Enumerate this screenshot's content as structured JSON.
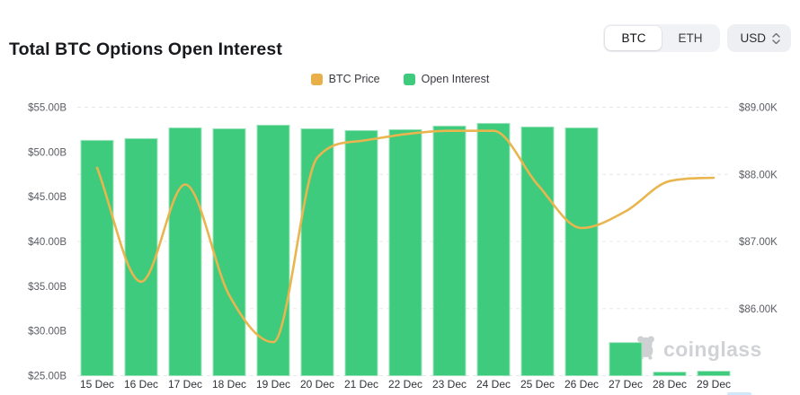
{
  "header": {
    "title": "Total BTC Options Open Interest",
    "coin_toggle": {
      "options": [
        "BTC",
        "ETH"
      ],
      "selected": "BTC"
    },
    "currency": {
      "value": "USD"
    }
  },
  "legend": {
    "items": [
      {
        "label": "BTC Price",
        "color": "#e9b04a"
      },
      {
        "label": "Open Interest",
        "color": "#3ecb7d"
      }
    ]
  },
  "watermark": {
    "text": "coinglass"
  },
  "chart_data": {
    "type": "bar+line",
    "title": "Total BTC Options Open Interest",
    "categories": [
      "15 Dec",
      "16 Dec",
      "17 Dec",
      "18 Dec",
      "19 Dec",
      "20 Dec",
      "21 Dec",
      "22 Dec",
      "23 Dec",
      "24 Dec",
      "25 Dec",
      "26 Dec",
      "27 Dec",
      "28 Dec",
      "29 Dec"
    ],
    "series": [
      {
        "name": "Open Interest",
        "type": "bar",
        "axis": "left",
        "unit": "USD billions",
        "color": "#3ecb7d",
        "values": [
          51.3,
          51.5,
          52.7,
          52.6,
          53.0,
          52.6,
          52.4,
          52.5,
          52.9,
          53.2,
          52.8,
          52.7,
          28.7,
          25.4,
          25.5
        ]
      },
      {
        "name": "BTC Price",
        "type": "line",
        "axis": "right",
        "unit": "USD thousands",
        "color": "#e9b54e",
        "values": [
          88.1,
          86.4,
          87.85,
          86.2,
          85.5,
          88.25,
          88.5,
          88.6,
          88.65,
          88.65,
          87.85,
          87.2,
          87.45,
          87.9,
          87.95
        ]
      }
    ],
    "y_axis_left": {
      "ticks": [
        "$55.00B",
        "$50.00B",
        "$45.00B",
        "$40.00B",
        "$35.00B",
        "$30.00B",
        "$25.00B"
      ],
      "min": 25,
      "max": 55
    },
    "y_axis_right": {
      "ticks": [
        "$89.00K",
        "$88.00K",
        "$87.00K",
        "$86.00K"
      ],
      "min": 85,
      "max": 89
    },
    "grid": "horizontal-dashed",
    "legend_position": "top-center",
    "colors": {
      "bar": "#3ecb7d",
      "bar_border": "#9fe4bd",
      "line": "#e9b54e",
      "grid": "#e7e8ea",
      "axis_text": "#5a5d63",
      "x_text": "#2f3237"
    }
  }
}
